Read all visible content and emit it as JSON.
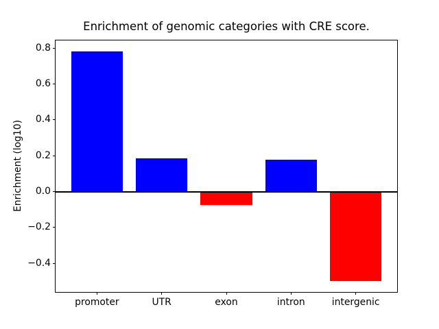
{
  "chart_data": {
    "type": "bar",
    "title": "Enrichment of genomic categories with CRE score.",
    "xlabel": "",
    "ylabel": "Enrichment (log10)",
    "categories": [
      "promoter",
      "UTR",
      "exon",
      "intron",
      "intergenic"
    ],
    "values": [
      0.78,
      0.186,
      -0.073,
      0.176,
      -0.497
    ],
    "bar_colors": [
      "#0000ff",
      "#0000ff",
      "#ff0000",
      "#0000ff",
      "#ff0000"
    ],
    "positive_color": "#0000ff",
    "negative_color": "#ff0000",
    "bar_width": 0.8,
    "ylim": [
      -0.56,
      0.843
    ],
    "xlim": [
      -0.64,
      4.64
    ],
    "yticks": [
      0.8,
      0.6,
      0.4,
      0.2,
      0.0,
      -0.2,
      -0.4
    ],
    "ytick_labels": [
      "0.8",
      "0.6",
      "0.4",
      "0.2",
      "0.0",
      "−0.2",
      "−0.4"
    ],
    "grid": false,
    "legend": false,
    "zero_line": true,
    "background_color": "#ffffff",
    "axis_color": "#000000"
  }
}
